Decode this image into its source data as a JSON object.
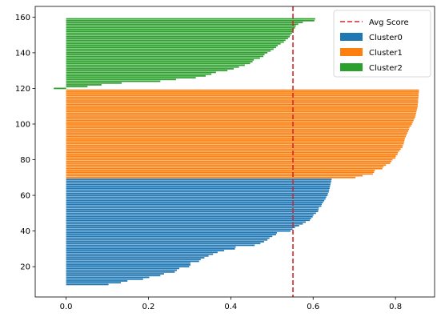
{
  "chart_data": {
    "type": "bar",
    "orientation": "horizontal",
    "grid": false,
    "legend_placement": "top-right",
    "xlim": [
      -0.075,
      0.895
    ],
    "ylim": [
      3,
      166
    ],
    "x_ticks": [
      0.0,
      0.2,
      0.4,
      0.6,
      0.8
    ],
    "x_tick_labels": [
      "0.0",
      "0.2",
      "0.4",
      "0.6",
      "0.8"
    ],
    "y_ticks": [
      20,
      40,
      60,
      80,
      100,
      120,
      140,
      160
    ],
    "y_tick_labels": [
      "20",
      "40",
      "60",
      "80",
      "100",
      "120",
      "140",
      "160"
    ],
    "reference_line": {
      "label": "Avg Score",
      "x": 0.551,
      "color": "#d62728",
      "style": "dashed"
    },
    "series": [
      {
        "name": "Cluster0",
        "color": "#1f77b4",
        "y_start": 10,
        "values": [
          0.103,
          0.133,
          0.149,
          0.187,
          0.202,
          0.229,
          0.238,
          0.264,
          0.269,
          0.275,
          0.299,
          0.302,
          0.302,
          0.323,
          0.327,
          0.336,
          0.346,
          0.357,
          0.368,
          0.384,
          0.41,
          0.412,
          0.458,
          0.472,
          0.481,
          0.489,
          0.494,
          0.501,
          0.51,
          0.512,
          0.545,
          0.55,
          0.556,
          0.566,
          0.575,
          0.582,
          0.592,
          0.595,
          0.599,
          0.601,
          0.607,
          0.612,
          0.613,
          0.614,
          0.62,
          0.621,
          0.624,
          0.627,
          0.63,
          0.632,
          0.635,
          0.636,
          0.638,
          0.639,
          0.64,
          0.641,
          0.642,
          0.643,
          0.644,
          0.645
        ]
      },
      {
        "name": "Cluster1",
        "color": "#ff7f0e",
        "y_start": 70,
        "values": [
          0.703,
          0.72,
          0.745,
          0.748,
          0.75,
          0.768,
          0.771,
          0.777,
          0.787,
          0.79,
          0.793,
          0.8,
          0.801,
          0.805,
          0.806,
          0.81,
          0.813,
          0.817,
          0.818,
          0.82,
          0.821,
          0.822,
          0.823,
          0.825,
          0.827,
          0.829,
          0.831,
          0.833,
          0.834,
          0.838,
          0.84,
          0.842,
          0.844,
          0.846,
          0.848,
          0.849,
          0.85,
          0.851,
          0.852,
          0.853,
          0.854,
          0.854,
          0.855,
          0.855,
          0.855,
          0.856,
          0.856,
          0.856,
          0.857,
          0.857
        ]
      },
      {
        "name": "Cluster2",
        "color": "#2ca02c",
        "y_start": 120,
        "values": [
          -0.03,
          0.052,
          0.086,
          0.135,
          0.229,
          0.267,
          0.315,
          0.339,
          0.353,
          0.364,
          0.392,
          0.407,
          0.42,
          0.434,
          0.447,
          0.453,
          0.456,
          0.471,
          0.479,
          0.482,
          0.489,
          0.497,
          0.504,
          0.51,
          0.514,
          0.521,
          0.529,
          0.533,
          0.539,
          0.543,
          0.545,
          0.549,
          0.551,
          0.553,
          0.556,
          0.558,
          0.564,
          0.575,
          0.603,
          0.605
        ]
      }
    ]
  }
}
